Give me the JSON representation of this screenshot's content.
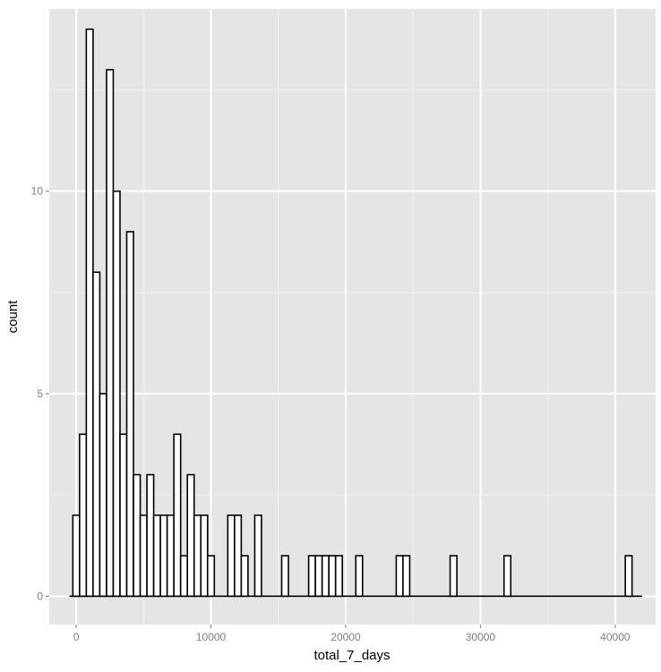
{
  "chart_data": {
    "type": "bar",
    "subtype": "histogram",
    "title": "",
    "xlabel": "total_7_days",
    "ylabel": "count",
    "xlim": [
      -2000,
      43000
    ],
    "ylim": [
      -0.7,
      14.5
    ],
    "binwidth": 500,
    "x_ticks": [
      0,
      10000,
      20000,
      30000,
      40000
    ],
    "x_tick_labels": [
      "0",
      "10000",
      "20000",
      "30000",
      "40000"
    ],
    "y_ticks": [
      0,
      5,
      10
    ],
    "y_tick_labels": [
      "0",
      "5",
      "10"
    ],
    "grid": true,
    "legend": "none",
    "colors": {
      "panel": "#e5e5e5",
      "grid_major": "#ffffff",
      "grid_minor": "#f2f2f2",
      "bar_fill": "#ffffff",
      "bar_outline": "#000000"
    },
    "bins": [
      {
        "x": 0,
        "count": 2
      },
      {
        "x": 500,
        "count": 4
      },
      {
        "x": 1000,
        "count": 14
      },
      {
        "x": 1500,
        "count": 8
      },
      {
        "x": 2000,
        "count": 5
      },
      {
        "x": 2500,
        "count": 13
      },
      {
        "x": 3000,
        "count": 10
      },
      {
        "x": 3500,
        "count": 4
      },
      {
        "x": 4000,
        "count": 9
      },
      {
        "x": 4500,
        "count": 3
      },
      {
        "x": 5000,
        "count": 2
      },
      {
        "x": 5500,
        "count": 3
      },
      {
        "x": 6000,
        "count": 2
      },
      {
        "x": 6500,
        "count": 2
      },
      {
        "x": 7000,
        "count": 2
      },
      {
        "x": 7500,
        "count": 4
      },
      {
        "x": 8000,
        "count": 1
      },
      {
        "x": 8500,
        "count": 3
      },
      {
        "x": 9000,
        "count": 2
      },
      {
        "x": 9500,
        "count": 2
      },
      {
        "x": 10000,
        "count": 1
      },
      {
        "x": 11500,
        "count": 2
      },
      {
        "x": 12000,
        "count": 2
      },
      {
        "x": 12500,
        "count": 1
      },
      {
        "x": 13500,
        "count": 2
      },
      {
        "x": 15500,
        "count": 1
      },
      {
        "x": 17500,
        "count": 1
      },
      {
        "x": 18000,
        "count": 1
      },
      {
        "x": 18500,
        "count": 1
      },
      {
        "x": 19000,
        "count": 1
      },
      {
        "x": 19500,
        "count": 1
      },
      {
        "x": 21000,
        "count": 1
      },
      {
        "x": 24000,
        "count": 1
      },
      {
        "x": 24500,
        "count": 1
      },
      {
        "x": 28000,
        "count": 1
      },
      {
        "x": 32000,
        "count": 1
      },
      {
        "x": 41000,
        "count": 1
      }
    ],
    "data_range": [
      -500,
      42000
    ]
  }
}
